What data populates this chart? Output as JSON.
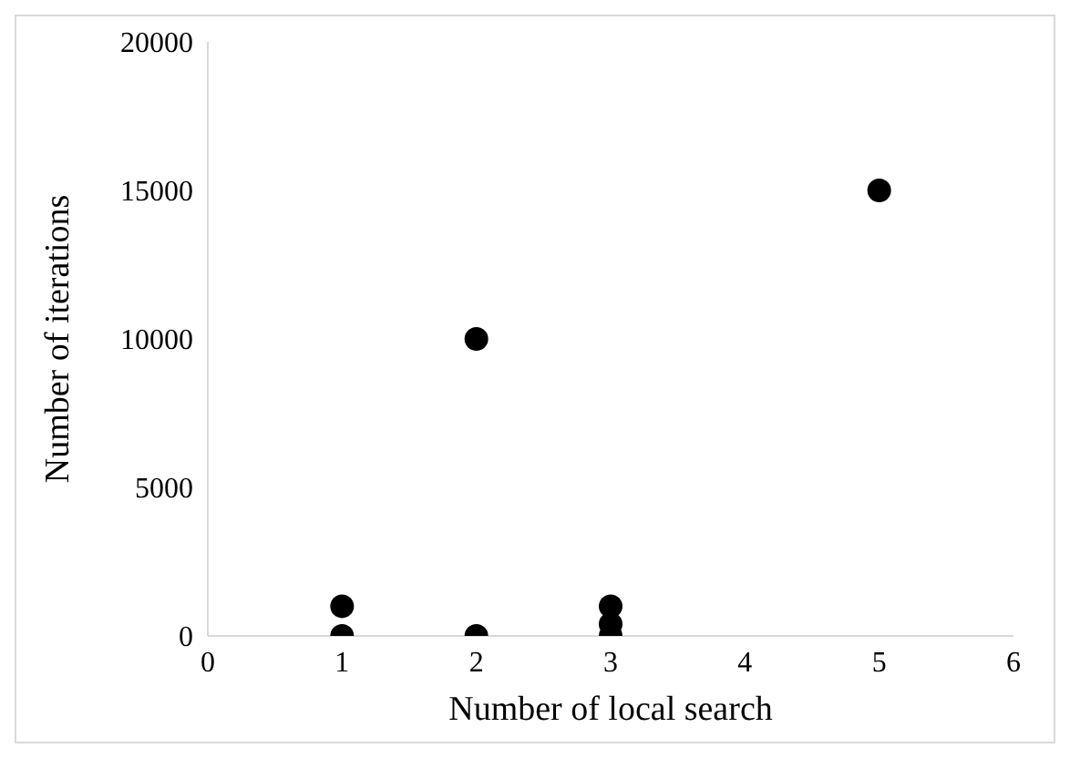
{
  "chart_data": {
    "type": "scatter",
    "xlabel": "Number of local search",
    "ylabel": "Number of iterations",
    "x": [
      1,
      1,
      2,
      2,
      3,
      3,
      3,
      5
    ],
    "values": [
      1000,
      0,
      10000,
      0,
      1000,
      400,
      0,
      15000
    ],
    "color": "#000000",
    "marker": "circle",
    "xlim": [
      0,
      6
    ],
    "xticks": [
      0,
      1,
      2,
      3,
      4,
      5,
      6
    ],
    "ylim": [
      0,
      20000
    ],
    "yticks": [
      0,
      5000,
      10000,
      15000,
      20000
    ],
    "grid": false,
    "legend": false
  }
}
